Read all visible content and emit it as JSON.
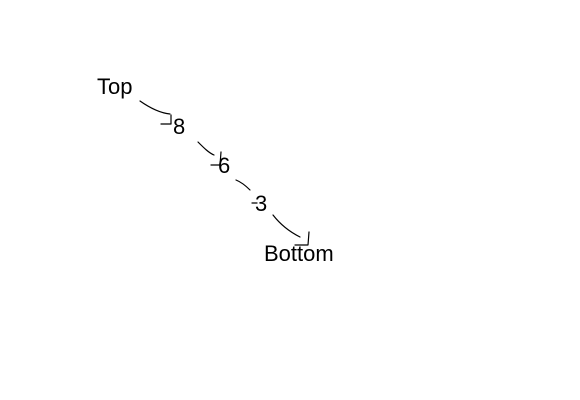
{
  "nodes": [
    {
      "id": "top",
      "label": "Top"
    },
    {
      "id": "n1",
      "label": "8"
    },
    {
      "id": "n2",
      "label": "6"
    },
    {
      "id": "n3",
      "label": "3"
    },
    {
      "id": "bottom",
      "label": "Bottom"
    }
  ],
  "edges": [
    {
      "from": "top",
      "to": "n1"
    },
    {
      "from": "n1",
      "to": "n2"
    },
    {
      "from": "n2",
      "to": "n3"
    },
    {
      "from": "n3",
      "to": "bottom"
    }
  ],
  "colors": {
    "background": "#ffffff",
    "ink": "#000000"
  }
}
